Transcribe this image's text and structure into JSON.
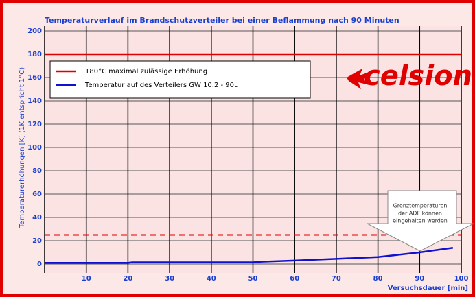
{
  "chart_data": {
    "type": "line",
    "title": "Temperaturverlauf im Brandschutzverteiler bei einer Beflammung nach 90 Minuten",
    "y_label": "Temperaturerhöhungen [K] (1K entspricht 1°C)",
    "x_label": "Versuchsdauer [min]",
    "xlim": [
      0,
      100
    ],
    "xticks": [
      10,
      20,
      30,
      40,
      50,
      60,
      70,
      80,
      90,
      100
    ],
    "ylim": [
      0,
      200
    ],
    "yticks": [
      0,
      20,
      40,
      60,
      80,
      100,
      120,
      140,
      160,
      180,
      200
    ],
    "grid": true,
    "series": [
      {
        "name": "180°C maximal zulässige Erhöhung",
        "color": "#e00000",
        "x": [
          0,
          100
        ],
        "values": [
          180,
          180
        ]
      },
      {
        "name": "Temperatur auf des Verteilers GW 10.2 - 90L",
        "color": "#1010d0",
        "x": [
          0,
          20,
          21,
          50,
          52,
          60,
          70,
          80,
          85,
          90,
          95,
          98
        ],
        "values": [
          1,
          1,
          1.5,
          1.5,
          2,
          3,
          4.5,
          6,
          8,
          10,
          12.5,
          14
        ]
      }
    ],
    "reference_lines": [
      {
        "value": 25,
        "color": "#e00000",
        "dashed": true
      }
    ],
    "logo": "celsion",
    "annotation": [
      "Grenztemperaturen",
      "der ADF können",
      "eingehalten werden"
    ]
  }
}
